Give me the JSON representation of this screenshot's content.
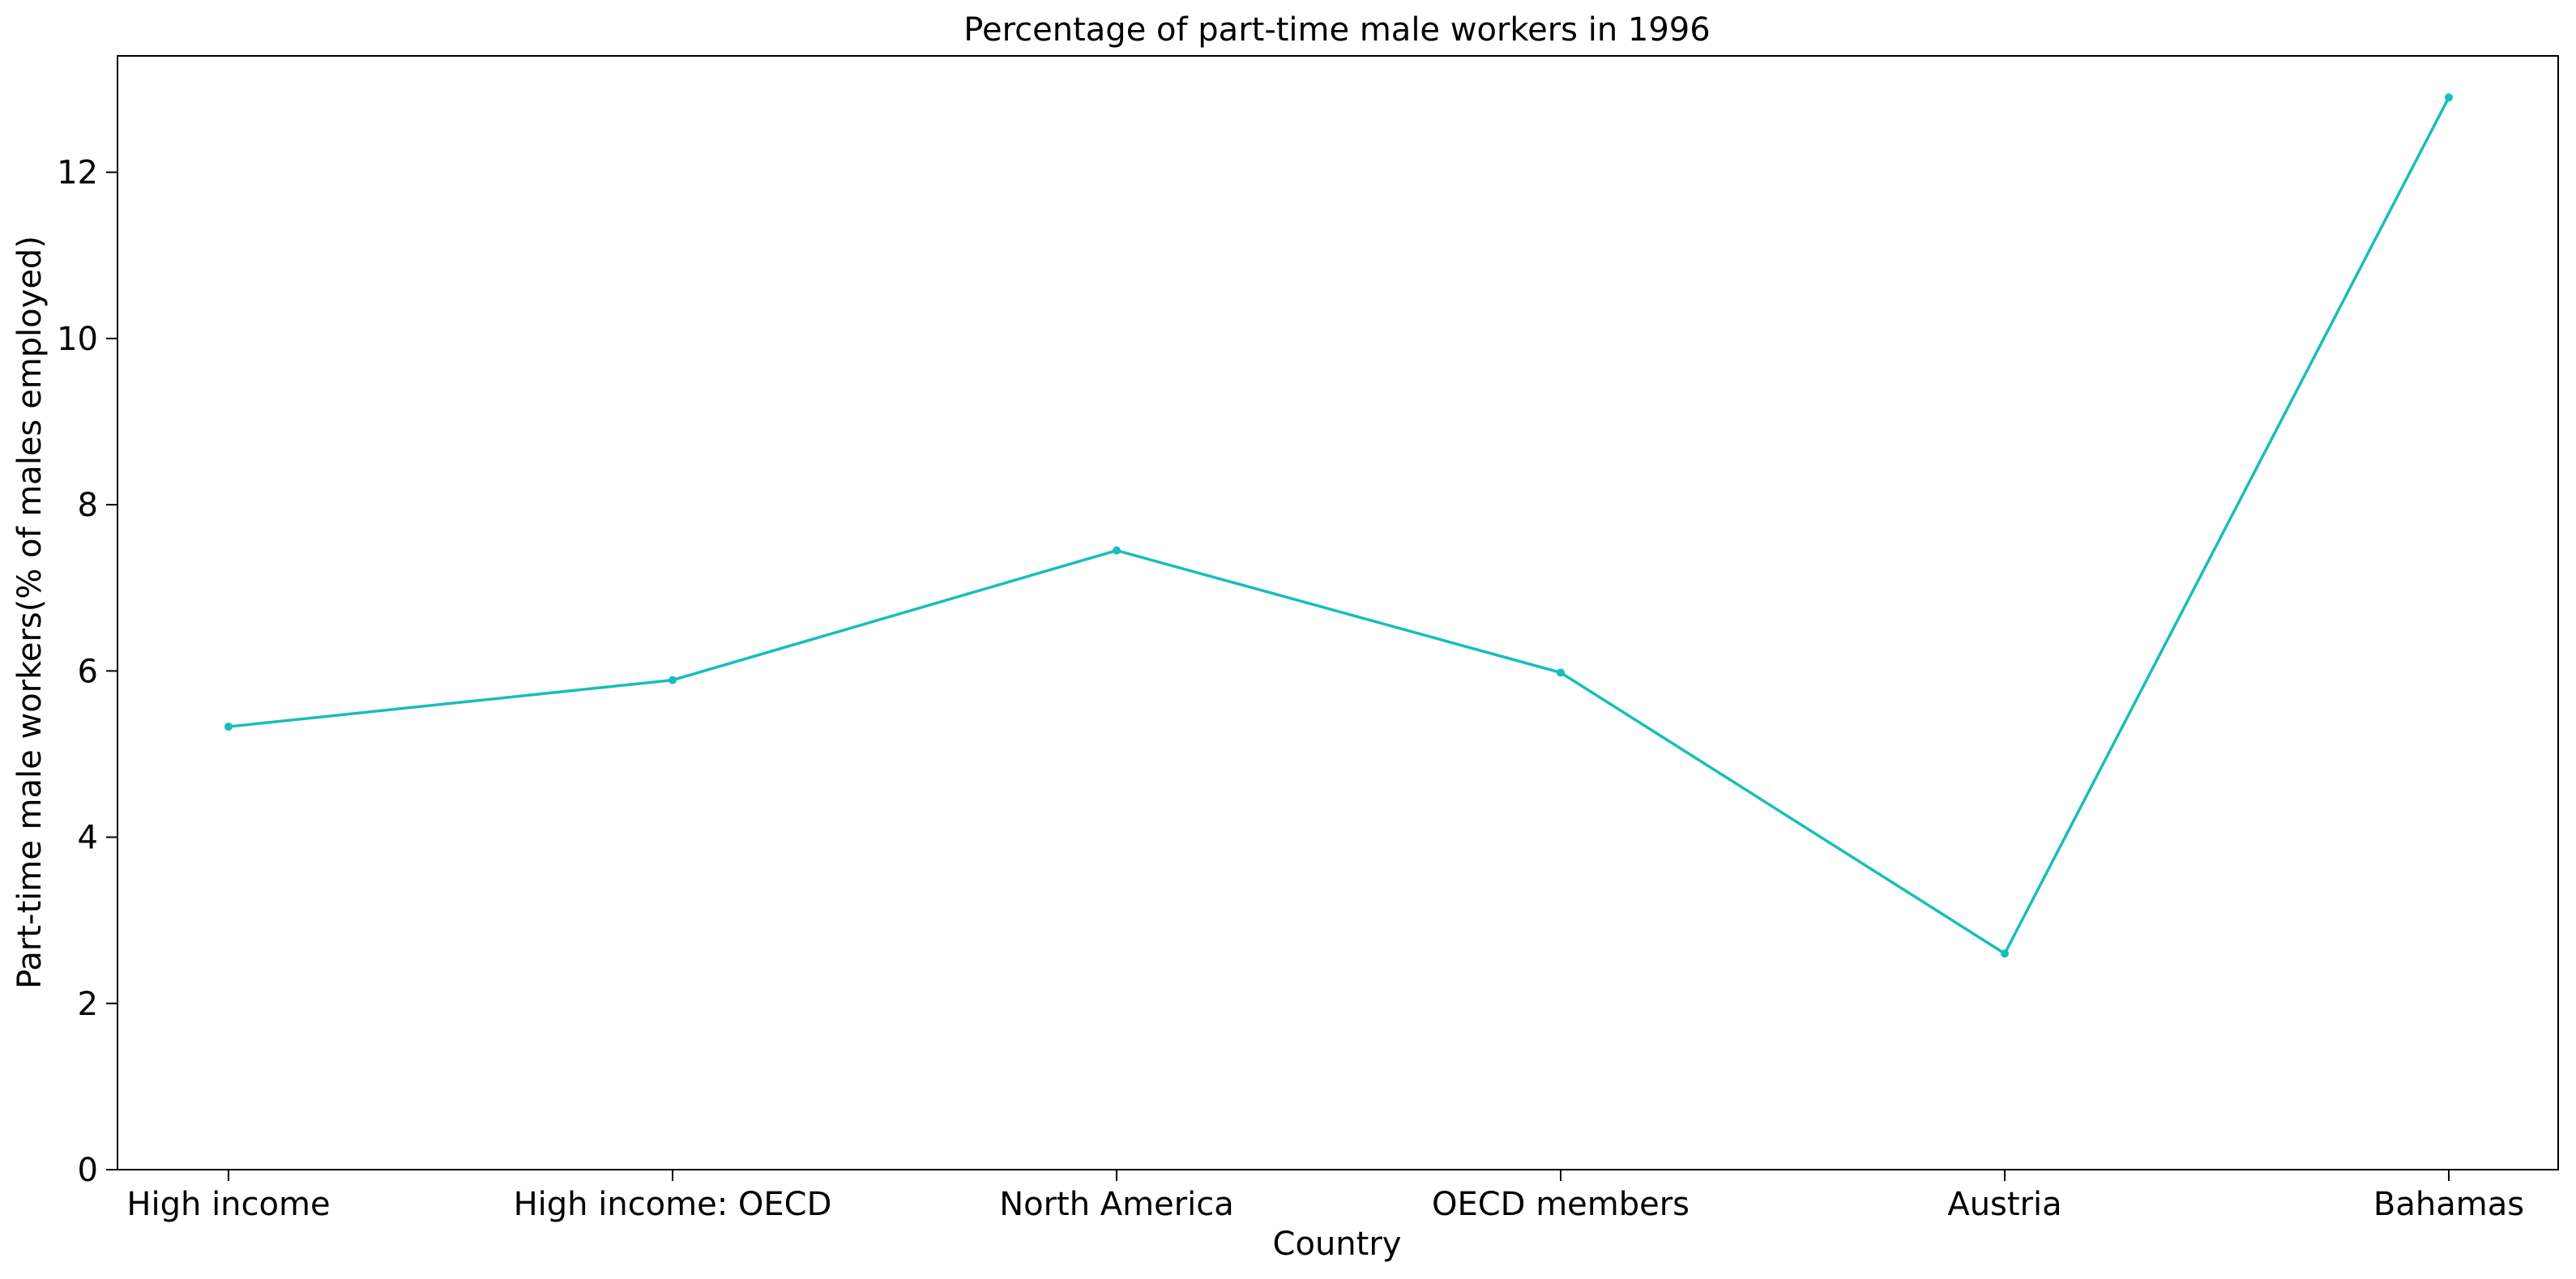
{
  "chart_data": {
    "type": "line",
    "title": "Percentage of part-time male workers in 1996",
    "xlabel": "Country",
    "ylabel": "Part-time male workers(% of males employed)",
    "categories": [
      "High income",
      "High income: OECD",
      "North America",
      "OECD members",
      "Austria",
      "Bahamas"
    ],
    "series": [
      {
        "values": [
          5.33,
          5.89,
          7.45,
          5.98,
          2.6,
          12.9
        ]
      }
    ],
    "ylim": [
      0,
      13.4
    ],
    "yticks": [
      0,
      2,
      4,
      6,
      8,
      10,
      12
    ],
    "line_color": "#17BEBB",
    "grid": false,
    "legend": "none"
  }
}
